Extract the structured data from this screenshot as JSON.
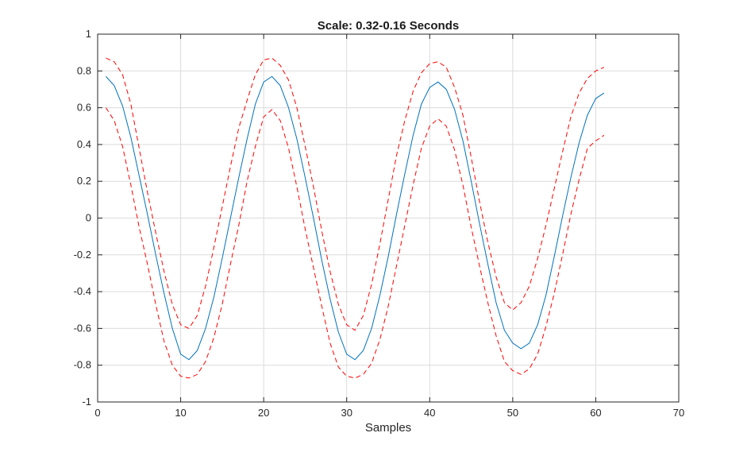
{
  "chart_data": {
    "type": "line",
    "title": "Scale: 0.32-0.16 Seconds",
    "xlabel": "Samples",
    "ylabel": "",
    "xlim": [
      0,
      70
    ],
    "ylim": [
      -1,
      1
    ],
    "xticks": [
      0,
      10,
      20,
      30,
      40,
      50,
      60,
      70
    ],
    "yticks": [
      -1,
      -0.8,
      -0.6,
      -0.4,
      -0.2,
      0,
      0.2,
      0.4,
      0.6,
      0.8,
      1
    ],
    "grid": true,
    "x": [
      1,
      2,
      3,
      4,
      5,
      6,
      7,
      8,
      9,
      10,
      11,
      12,
      13,
      14,
      15,
      16,
      17,
      18,
      19,
      20,
      21,
      22,
      23,
      24,
      25,
      26,
      27,
      28,
      29,
      30,
      31,
      32,
      33,
      34,
      35,
      36,
      37,
      38,
      39,
      40,
      41,
      42,
      43,
      44,
      45,
      46,
      47,
      48,
      49,
      50,
      51,
      52,
      53,
      54,
      55,
      56,
      57,
      58,
      59,
      60,
      61
    ],
    "series": [
      {
        "color": "#0072bd",
        "style": "solid",
        "values": [
          0.77,
          0.72,
          0.61,
          0.44,
          0.23,
          0.02,
          -0.2,
          -0.41,
          -0.6,
          -0.74,
          -0.77,
          -0.72,
          -0.6,
          -0.43,
          -0.22,
          0.0,
          0.22,
          0.43,
          0.62,
          0.74,
          0.77,
          0.72,
          0.6,
          0.43,
          0.22,
          0.0,
          -0.23,
          -0.44,
          -0.62,
          -0.74,
          -0.77,
          -0.72,
          -0.6,
          -0.42,
          -0.21,
          0.02,
          0.24,
          0.45,
          0.62,
          0.71,
          0.74,
          0.7,
          0.59,
          0.42,
          0.2,
          -0.03,
          -0.25,
          -0.46,
          -0.61,
          -0.68,
          -0.71,
          -0.68,
          -0.58,
          -0.42,
          -0.21,
          0.01,
          0.22,
          0.41,
          0.56,
          0.65,
          0.68
        ]
      },
      {
        "color": "#ff0000",
        "style": "dashed",
        "values": [
          0.87,
          0.85,
          0.78,
          0.62,
          0.38,
          0.14,
          -0.08,
          -0.29,
          -0.47,
          -0.58,
          -0.6,
          -0.53,
          -0.37,
          -0.16,
          0.06,
          0.28,
          0.49,
          0.64,
          0.78,
          0.86,
          0.87,
          0.83,
          0.75,
          0.6,
          0.39,
          0.17,
          -0.07,
          -0.29,
          -0.47,
          -0.58,
          -0.61,
          -0.53,
          -0.36,
          -0.14,
          0.1,
          0.34,
          0.53,
          0.69,
          0.79,
          0.84,
          0.85,
          0.82,
          0.71,
          0.56,
          0.33,
          0.09,
          -0.13,
          -0.32,
          -0.46,
          -0.5,
          -0.46,
          -0.37,
          -0.22,
          -0.04,
          0.16,
          0.36,
          0.55,
          0.68,
          0.76,
          0.8,
          0.82
        ]
      },
      {
        "color": "#ff0000",
        "style": "dashed",
        "values": [
          0.6,
          0.53,
          0.39,
          0.18,
          -0.05,
          -0.25,
          -0.47,
          -0.67,
          -0.8,
          -0.86,
          -0.87,
          -0.85,
          -0.78,
          -0.65,
          -0.47,
          -0.25,
          -0.04,
          0.2,
          0.39,
          0.55,
          0.59,
          0.53,
          0.38,
          0.17,
          -0.06,
          -0.27,
          -0.48,
          -0.68,
          -0.81,
          -0.86,
          -0.87,
          -0.85,
          -0.79,
          -0.66,
          -0.48,
          -0.26,
          -0.04,
          0.18,
          0.38,
          0.5,
          0.54,
          0.5,
          0.37,
          0.18,
          -0.05,
          -0.26,
          -0.46,
          -0.64,
          -0.78,
          -0.83,
          -0.85,
          -0.82,
          -0.74,
          -0.59,
          -0.41,
          -0.2,
          0.02,
          0.21,
          0.38,
          0.42,
          0.45
        ]
      }
    ]
  }
}
